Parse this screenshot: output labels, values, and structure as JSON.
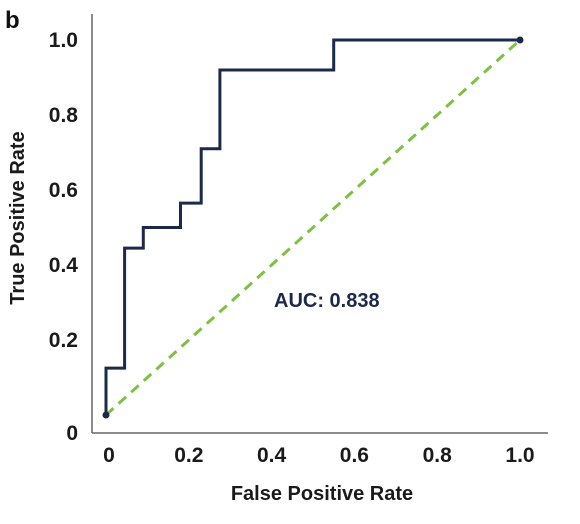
{
  "panel_label": "b",
  "colors": {
    "roc_line": "#1b2a4a",
    "diagonal": "#7dc142",
    "axis": "#666666",
    "annotation": "#1b2a4a"
  },
  "chart_data": {
    "type": "line",
    "xlabel": "False Positive Rate",
    "ylabel": "True Positive Rate",
    "xlim": [
      0,
      1.0
    ],
    "ylim": [
      0,
      1.0
    ],
    "x_ticks": [
      "0",
      "0.2",
      "0.4",
      "0.6",
      "0.8",
      "1.0"
    ],
    "y_ticks": [
      "0",
      "0.2",
      "0.4",
      "0.6",
      "0.8",
      "1.0"
    ],
    "x_tick_values": [
      0,
      0.2,
      0.4,
      0.6,
      0.8,
      1.0
    ],
    "y_tick_values": [
      0,
      0.2,
      0.4,
      0.6,
      0.8,
      1.0
    ],
    "grid": false,
    "annotation": "AUC: 0.838",
    "series": [
      {
        "style": "solid",
        "x": [
          0,
          0,
          0.045,
          0.045,
          0.09,
          0.09,
          0.18,
          0.18,
          0.23,
          0.23,
          0.275,
          0.275,
          0.55,
          0.55,
          1.0
        ],
        "y": [
          0,
          0.125,
          0.125,
          0.445,
          0.445,
          0.5,
          0.5,
          0.565,
          0.565,
          0.71,
          0.71,
          0.92,
          0.92,
          1.0,
          1.0
        ]
      },
      {
        "style": "dashed",
        "x": [
          0,
          1.0
        ],
        "y": [
          0,
          1.0
        ]
      }
    ]
  }
}
